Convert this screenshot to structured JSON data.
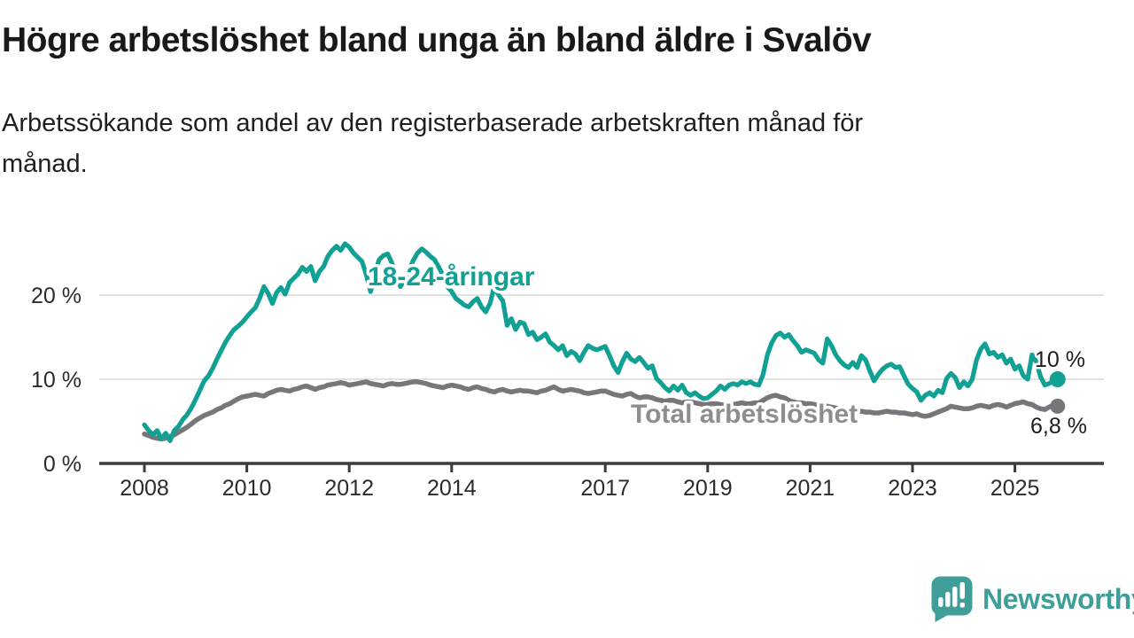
{
  "header": {
    "title": "Högre arbetslöshet bland unga än bland äldre i Svalöv",
    "subtitle_line1": "Arbetssökande som andel av den registerbaserade arbetskraften månad för",
    "subtitle_line2": "månad."
  },
  "footer": {
    "brand": "Newsworthy",
    "brand_color": "#3f9e98",
    "logo_icon": "speech-bubble-bar-chart-icon"
  },
  "chart_data": {
    "type": "line",
    "unit": "%",
    "grid": "horizontal",
    "x_range": [
      2007.1,
      2026.7
    ],
    "y_range": [
      0,
      27
    ],
    "x_ticks": [
      {
        "year": 2008,
        "label": "2008"
      },
      {
        "year": 2010,
        "label": "2010"
      },
      {
        "year": 2012,
        "label": "2012"
      },
      {
        "year": 2014,
        "label": "2014"
      },
      {
        "year": 2017,
        "label": "2017"
      },
      {
        "year": 2019,
        "label": "2019"
      },
      {
        "year": 2021,
        "label": "2021"
      },
      {
        "year": 2023,
        "label": "2023"
      },
      {
        "year": 2025,
        "label": "2025"
      }
    ],
    "y_ticks": [
      {
        "value": 0,
        "label": "0 %"
      },
      {
        "value": 10,
        "label": "10 %"
      },
      {
        "value": 20,
        "label": "20 %"
      }
    ],
    "series": [
      {
        "name": "18-24-åringar",
        "color": "#11a094",
        "label_color": "#11a094",
        "end_label": "10 %",
        "start_year": 2008,
        "monthly_values": [
          4.6,
          3.9,
          3.4,
          3.9,
          2.9,
          3.6,
          2.7,
          3.9,
          4.4,
          5.2,
          5.8,
          6.6,
          7.6,
          8.7,
          9.8,
          10.4,
          11.3,
          12.4,
          13.4,
          14.4,
          15.2,
          15.9,
          16.3,
          16.8,
          17.4,
          18.0,
          18.5,
          19.6,
          21.0,
          20.2,
          19.0,
          20.3,
          20.9,
          20.1,
          21.5,
          22.0,
          22.5,
          23.3,
          22.8,
          23.4,
          21.7,
          22.8,
          23.4,
          24.6,
          25.3,
          25.8,
          25.3,
          26.1,
          25.7,
          25.0,
          24.5,
          24.0,
          22.4,
          20.4,
          22.6,
          24.2,
          24.7,
          24.9,
          23.8,
          22.3,
          21.0,
          21.8,
          22.9,
          24.1,
          25.0,
          25.5,
          25.1,
          24.6,
          24.2,
          23.3,
          22.3,
          21.0,
          20.4,
          19.6,
          19.2,
          18.8,
          18.6,
          19.2,
          19.6,
          18.6,
          18.0,
          19.0,
          21.0,
          20.0,
          19.3,
          16.4,
          17.2,
          15.9,
          16.8,
          16.6,
          15.3,
          15.6,
          14.7,
          15.0,
          15.4,
          14.4,
          14.0,
          13.5,
          14.0,
          12.8,
          13.3,
          13.0,
          12.2,
          13.2,
          14.0,
          13.7,
          13.5,
          13.7,
          13.9,
          12.8,
          11.6,
          10.8,
          12.1,
          13.1,
          12.4,
          12.1,
          12.6,
          12.0,
          11.3,
          11.6,
          10.1,
          9.6,
          9.0,
          8.6,
          9.2,
          8.7,
          9.3,
          8.4,
          8.1,
          8.4,
          8.0,
          7.7,
          7.8,
          8.2,
          8.6,
          9.2,
          8.8,
          9.3,
          9.5,
          9.3,
          9.7,
          9.5,
          9.7,
          9.4,
          9.3,
          10.6,
          12.9,
          14.3,
          15.2,
          15.5,
          15.0,
          15.3,
          14.6,
          14.0,
          13.2,
          13.5,
          13.3,
          13.1,
          12.3,
          11.9,
          14.8,
          14.0,
          12.9,
          12.2,
          11.7,
          11.4,
          12.0,
          11.4,
          12.8,
          12.3,
          11.0,
          9.8,
          10.6,
          11.2,
          11.6,
          11.8,
          11.4,
          11.5,
          10.4,
          9.4,
          8.9,
          8.5,
          7.5,
          8.1,
          8.4,
          8.0,
          8.7,
          8.4,
          10.1,
          10.7,
          10.2,
          9.0,
          9.7,
          9.2,
          10.0,
          12.3,
          13.6,
          14.2,
          13.0,
          13.2,
          12.6,
          12.9,
          11.9,
          12.4,
          11.2,
          11.6,
          10.4,
          10.0,
          12.9,
          12.1,
          10.3,
          9.3,
          9.5,
          9.8,
          10.0
        ]
      },
      {
        "name": "Total arbetslöshet",
        "color": "#76767b",
        "label_color": "#8d8d93",
        "end_label": "6,8 %",
        "start_year": 2008,
        "monthly_values": [
          3.5,
          3.3,
          3.1,
          3.0,
          2.9,
          3.0,
          3.2,
          3.4,
          3.7,
          4.0,
          4.3,
          4.7,
          5.1,
          5.4,
          5.7,
          5.9,
          6.1,
          6.4,
          6.6,
          6.9,
          7.1,
          7.4,
          7.7,
          7.9,
          8.0,
          8.1,
          8.2,
          8.1,
          8.0,
          8.3,
          8.5,
          8.7,
          8.8,
          8.7,
          8.6,
          8.8,
          8.9,
          9.1,
          9.2,
          9.0,
          8.8,
          9.0,
          9.1,
          9.3,
          9.4,
          9.5,
          9.6,
          9.5,
          9.3,
          9.4,
          9.5,
          9.6,
          9.7,
          9.5,
          9.4,
          9.3,
          9.2,
          9.4,
          9.5,
          9.4,
          9.4,
          9.5,
          9.6,
          9.7,
          9.7,
          9.6,
          9.5,
          9.3,
          9.2,
          9.1,
          9.0,
          9.2,
          9.3,
          9.2,
          9.1,
          8.9,
          8.8,
          9.0,
          9.1,
          8.9,
          8.8,
          8.6,
          8.5,
          8.7,
          8.8,
          8.6,
          8.5,
          8.6,
          8.7,
          8.6,
          8.6,
          8.5,
          8.4,
          8.6,
          8.7,
          8.9,
          9.1,
          8.8,
          8.6,
          8.7,
          8.8,
          8.7,
          8.6,
          8.4,
          8.3,
          8.4,
          8.5,
          8.6,
          8.6,
          8.4,
          8.2,
          8.1,
          8.0,
          8.2,
          8.3,
          8.0,
          7.8,
          7.9,
          7.9,
          7.8,
          7.6,
          7.5,
          7.4,
          7.5,
          7.5,
          7.3,
          7.2,
          7.3,
          7.3,
          7.2,
          7.1,
          7.0,
          7.0,
          7.1,
          7.1,
          7.0,
          6.9,
          7.0,
          7.0,
          7.1,
          7.2,
          7.1,
          7.1,
          7.2,
          7.2,
          7.5,
          7.8,
          8.0,
          8.1,
          7.9,
          7.8,
          7.5,
          7.3,
          7.2,
          7.2,
          7.1,
          7.1,
          7.0,
          6.9,
          6.8,
          6.8,
          6.7,
          6.6,
          6.5,
          6.4,
          6.3,
          6.3,
          6.2,
          6.2,
          6.1,
          6.1,
          6.0,
          6.0,
          6.1,
          6.2,
          6.1,
          6.1,
          6.0,
          6.0,
          5.9,
          5.8,
          5.9,
          5.7,
          5.6,
          5.7,
          5.9,
          6.1,
          6.3,
          6.5,
          6.8,
          6.7,
          6.6,
          6.5,
          6.5,
          6.6,
          6.8,
          6.9,
          6.8,
          6.7,
          6.9,
          7.0,
          6.9,
          6.7,
          6.9,
          7.1,
          7.2,
          7.3,
          7.1,
          7.0,
          6.7,
          6.5,
          6.4,
          6.7,
          6.9,
          6.8
        ]
      }
    ],
    "colors": {
      "grid": "#d8d8d8",
      "axis": "#3b3b3b",
      "tick_text": "#2b2b2b",
      "value_text": "#1d1d1d"
    }
  }
}
